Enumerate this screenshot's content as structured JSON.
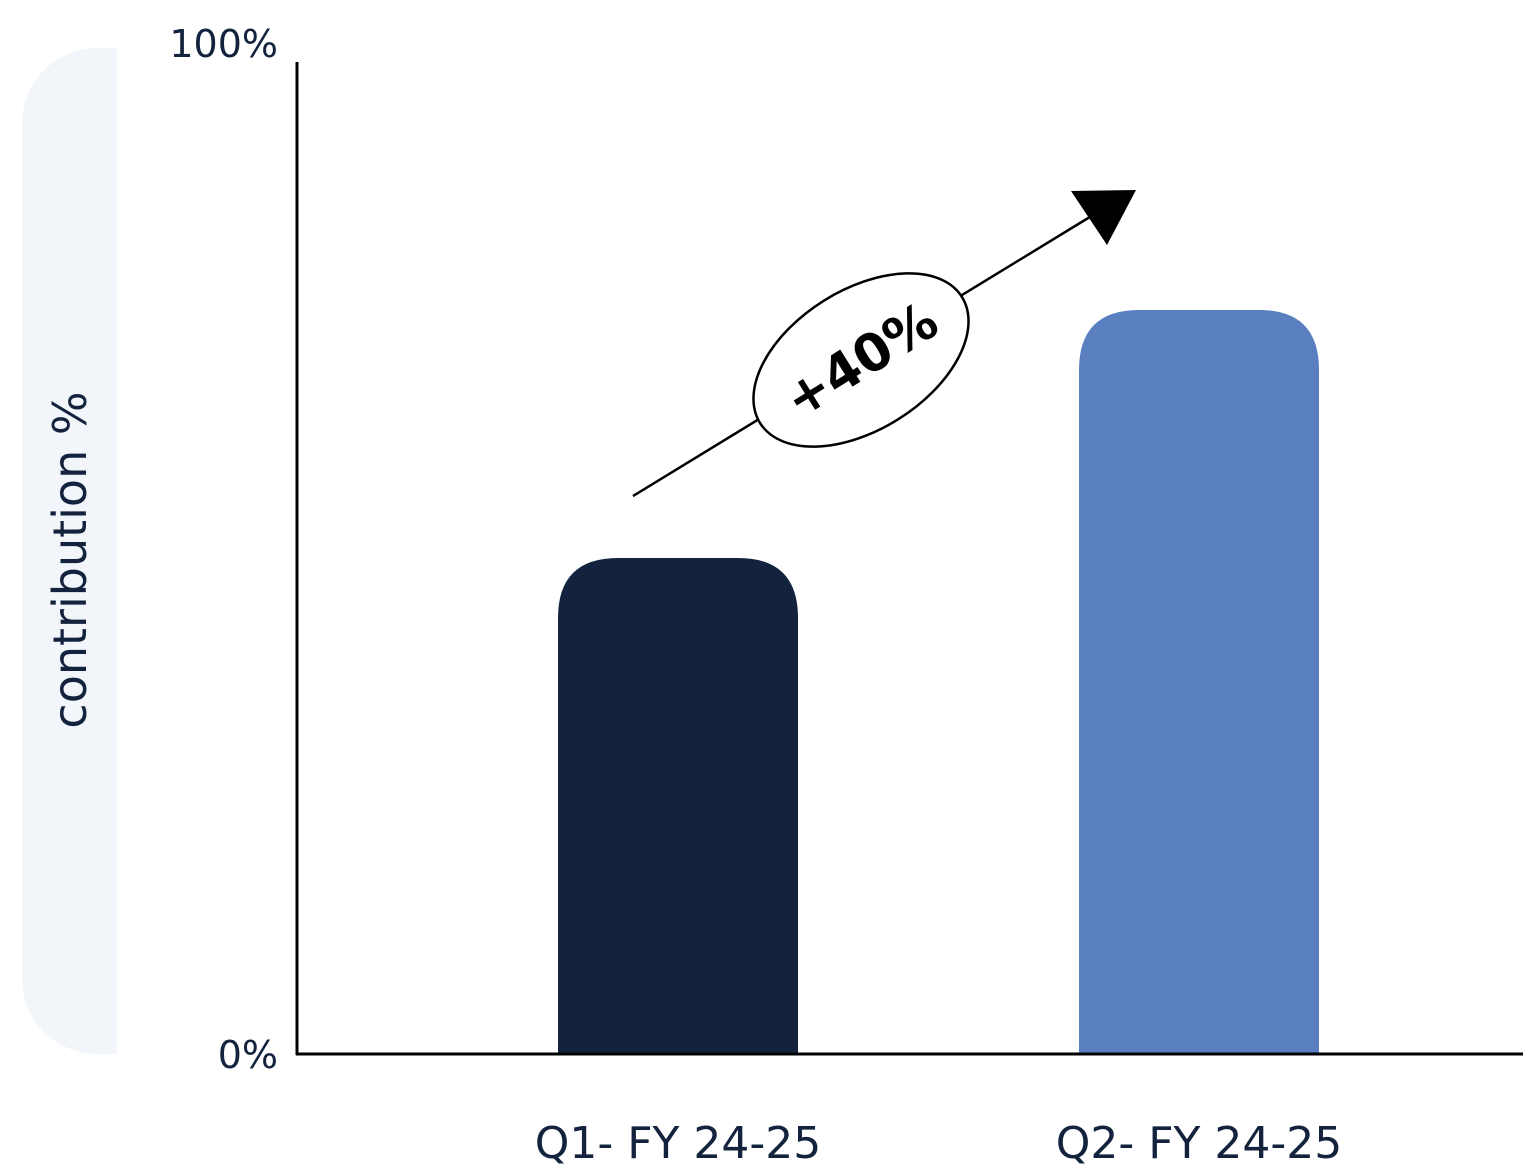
{
  "chart_data": {
    "type": "bar",
    "categories": [
      "Q1- FY 24-25",
      "Q2- FY 24-25"
    ],
    "values": [
      50,
      75
    ],
    "ylabel": "contribution %",
    "ylim": [
      0,
      100
    ],
    "yticks": [
      "0%",
      "100%"
    ],
    "annotation": "+40%",
    "grid": false,
    "colors": [
      "#13223d",
      "#5a7fc0"
    ],
    "label_band_color": "#f2f6fb"
  }
}
